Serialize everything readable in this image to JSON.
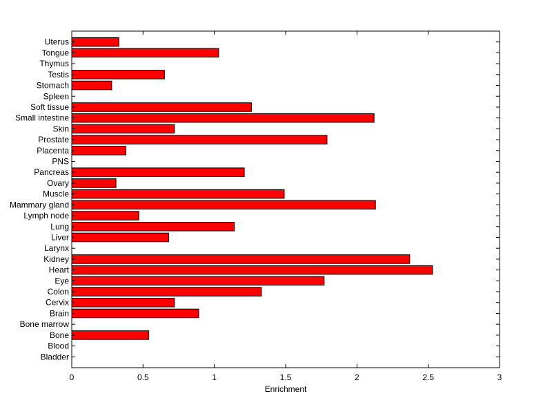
{
  "chart_data": {
    "type": "bar",
    "orientation": "horizontal",
    "xlabel": "Enrichment",
    "ylabel": "",
    "title": "",
    "xlim": [
      0,
      3
    ],
    "xticks": [
      0,
      0.5,
      1,
      1.5,
      2,
      2.5,
      3
    ],
    "xtick_labels": [
      "0",
      "0.5",
      "1",
      "1.5",
      "2",
      "2.5",
      "3"
    ],
    "grid": false,
    "bar_color": "#ff0000",
    "edge_color": "#000000",
    "categories": [
      "Uterus",
      "Tongue",
      "Thymus",
      "Testis",
      "Stomach",
      "Spleen",
      "Soft tissue",
      "Small intestine",
      "Skin",
      "Prostate",
      "Placenta",
      "PNS",
      "Pancreas",
      "Ovary",
      "Muscle",
      "Mammary gland",
      "Lymph node",
      "Lung",
      "Liver",
      "Larynx",
      "Kidney",
      "Heart",
      "Eye",
      "Colon",
      "Cervix",
      "Brain",
      "Bone marrow",
      "Bone",
      "Blood",
      "Bladder"
    ],
    "values": [
      0.33,
      1.03,
      0,
      0.65,
      0.28,
      0,
      1.26,
      2.12,
      0.72,
      1.79,
      0.38,
      0,
      1.21,
      0.31,
      1.49,
      2.13,
      0.47,
      1.14,
      0.68,
      0,
      2.37,
      2.53,
      1.77,
      1.33,
      0.72,
      0.89,
      0,
      0.54,
      0,
      0
    ]
  }
}
